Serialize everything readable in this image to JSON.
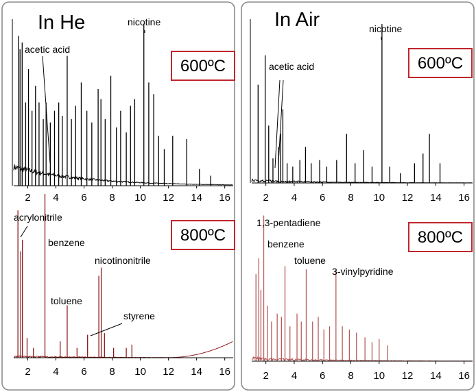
{
  "chart_data": [
    {
      "type": "line",
      "panel_title": "In He",
      "temperature": "600ºC",
      "color": "#000000",
      "xlim": [
        1,
        16.6
      ],
      "ticks": [
        2,
        4,
        6,
        8,
        10,
        12,
        14,
        16
      ],
      "peaks": [
        {
          "x": 1.35,
          "y": 0.9
        },
        {
          "x": 1.45,
          "y": 0.82
        },
        {
          "x": 1.6,
          "y": 0.86
        },
        {
          "x": 1.85,
          "y": 0.5
        },
        {
          "x": 2.05,
          "y": 0.7
        },
        {
          "x": 2.3,
          "y": 0.45
        },
        {
          "x": 2.55,
          "y": 0.6
        },
        {
          "x": 2.8,
          "y": 0.5
        },
        {
          "x": 3.1,
          "y": 0.4
        },
        {
          "x": 3.3,
          "y": 0.5
        },
        {
          "x": 3.6,
          "y": 0.38
        },
        {
          "x": 3.9,
          "y": 0.45
        },
        {
          "x": 4.2,
          "y": 0.5
        },
        {
          "x": 4.45,
          "y": 0.42
        },
        {
          "x": 4.8,
          "y": 0.78
        },
        {
          "x": 5.1,
          "y": 0.4
        },
        {
          "x": 5.4,
          "y": 0.48
        },
        {
          "x": 5.8,
          "y": 0.62
        },
        {
          "x": 6.2,
          "y": 0.45
        },
        {
          "x": 6.55,
          "y": 0.38
        },
        {
          "x": 7.0,
          "y": 0.58
        },
        {
          "x": 7.2,
          "y": 0.52
        },
        {
          "x": 7.5,
          "y": 0.4
        },
        {
          "x": 7.9,
          "y": 0.66
        },
        {
          "x": 8.3,
          "y": 0.35
        },
        {
          "x": 8.6,
          "y": 0.45
        },
        {
          "x": 9.0,
          "y": 0.32
        },
        {
          "x": 9.3,
          "y": 0.48
        },
        {
          "x": 9.6,
          "y": 0.52
        },
        {
          "x": 10.25,
          "y": 0.97
        },
        {
          "x": 10.6,
          "y": 0.62
        },
        {
          "x": 10.95,
          "y": 0.55
        },
        {
          "x": 11.3,
          "y": 0.3
        },
        {
          "x": 11.7,
          "y": 0.22
        },
        {
          "x": 12.3,
          "y": 0.3
        },
        {
          "x": 13.3,
          "y": 0.28
        },
        {
          "x": 14.2,
          "y": 0.1
        },
        {
          "x": 15.0,
          "y": 0.06
        }
      ],
      "annotations": [
        {
          "label": "acetic acid",
          "x": 3.7
        },
        {
          "label": "nicotine",
          "x": 10.25
        }
      ]
    },
    {
      "type": "line",
      "panel_title": "In Air",
      "temperature": "600ºC",
      "color": "#000000",
      "xlim": [
        1,
        16.6
      ],
      "ticks": [
        2,
        4,
        6,
        8,
        10,
        12,
        14,
        16
      ],
      "peaks": [
        {
          "x": 1.45,
          "y": 0.6
        },
        {
          "x": 1.95,
          "y": 0.78
        },
        {
          "x": 2.2,
          "y": 0.35
        },
        {
          "x": 2.5,
          "y": 0.15
        },
        {
          "x": 2.9,
          "y": 0.22
        },
        {
          "x": 3.05,
          "y": 0.3
        },
        {
          "x": 3.2,
          "y": 0.45
        },
        {
          "x": 3.5,
          "y": 0.12
        },
        {
          "x": 3.9,
          "y": 0.1
        },
        {
          "x": 4.4,
          "y": 0.14
        },
        {
          "x": 4.8,
          "y": 0.22
        },
        {
          "x": 5.2,
          "y": 0.12
        },
        {
          "x": 5.8,
          "y": 0.14
        },
        {
          "x": 6.3,
          "y": 0.1
        },
        {
          "x": 7.0,
          "y": 0.14
        },
        {
          "x": 7.7,
          "y": 0.3
        },
        {
          "x": 8.3,
          "y": 0.12
        },
        {
          "x": 8.9,
          "y": 0.2
        },
        {
          "x": 9.5,
          "y": 0.1
        },
        {
          "x": 10.2,
          "y": 0.97
        },
        {
          "x": 10.75,
          "y": 0.1
        },
        {
          "x": 11.5,
          "y": 0.06
        },
        {
          "x": 12.5,
          "y": 0.12
        },
        {
          "x": 13.1,
          "y": 0.18
        },
        {
          "x": 13.55,
          "y": 0.3
        },
        {
          "x": 14.3,
          "y": 0.12
        }
      ],
      "annotations": [
        {
          "label": "acetic acid",
          "x": 3.1
        },
        {
          "label": "nicotine",
          "x": 10.2
        }
      ]
    },
    {
      "type": "line",
      "panel_title": "",
      "temperature": "800ºC",
      "color": "#8b1a1a",
      "xlim": [
        1,
        16.6
      ],
      "ticks": [
        2,
        4,
        6,
        8,
        10,
        12,
        14,
        16
      ],
      "peaks": [
        {
          "x": 1.3,
          "y": 0.9
        },
        {
          "x": 1.5,
          "y": 0.65
        },
        {
          "x": 1.62,
          "y": 0.72
        },
        {
          "x": 1.95,
          "y": 0.12
        },
        {
          "x": 2.4,
          "y": 0.06
        },
        {
          "x": 3.22,
          "y": 1.0
        },
        {
          "x": 4.3,
          "y": 0.1
        },
        {
          "x": 4.8,
          "y": 0.32
        },
        {
          "x": 5.5,
          "y": 0.06
        },
        {
          "x": 6.25,
          "y": 0.14
        },
        {
          "x": 7.05,
          "y": 0.5
        },
        {
          "x": 7.22,
          "y": 0.55
        },
        {
          "x": 7.45,
          "y": 0.15
        },
        {
          "x": 8.1,
          "y": 0.06
        },
        {
          "x": 9.0,
          "y": 0.06
        },
        {
          "x": 9.4,
          "y": 0.08
        }
      ],
      "annotations": [
        {
          "label": "acrylonitrile",
          "x": 1.6
        },
        {
          "label": "benzene",
          "x": 3.22
        },
        {
          "label": "nicotinonitrile",
          "x": 7.22
        },
        {
          "label": "toluene",
          "x": 4.8
        },
        {
          "label": "styrene",
          "x": 6.25
        }
      ]
    },
    {
      "type": "line",
      "panel_title": "",
      "temperature": "800ºC",
      "color": "#b85a5a",
      "xlim": [
        1,
        16.6
      ],
      "ticks": [
        2,
        4,
        6,
        8,
        10,
        12,
        14,
        16
      ],
      "peaks": [
        {
          "x": 1.3,
          "y": 0.55
        },
        {
          "x": 1.5,
          "y": 0.65
        },
        {
          "x": 1.65,
          "y": 0.45
        },
        {
          "x": 1.85,
          "y": 0.92
        },
        {
          "x": 2.1,
          "y": 0.35
        },
        {
          "x": 2.4,
          "y": 0.25
        },
        {
          "x": 2.8,
          "y": 0.3
        },
        {
          "x": 3.1,
          "y": 0.28
        },
        {
          "x": 3.35,
          "y": 0.6
        },
        {
          "x": 3.7,
          "y": 0.22
        },
        {
          "x": 4.2,
          "y": 0.3
        },
        {
          "x": 4.5,
          "y": 0.25
        },
        {
          "x": 4.85,
          "y": 0.58
        },
        {
          "x": 5.3,
          "y": 0.25
        },
        {
          "x": 5.7,
          "y": 0.28
        },
        {
          "x": 6.1,
          "y": 0.2
        },
        {
          "x": 6.5,
          "y": 0.22
        },
        {
          "x": 6.95,
          "y": 0.58
        },
        {
          "x": 7.4,
          "y": 0.22
        },
        {
          "x": 7.9,
          "y": 0.2
        },
        {
          "x": 8.4,
          "y": 0.18
        },
        {
          "x": 9.0,
          "y": 0.15
        },
        {
          "x": 9.5,
          "y": 0.12
        },
        {
          "x": 10.0,
          "y": 0.14
        },
        {
          "x": 10.6,
          "y": 0.1
        }
      ],
      "annotations": [
        {
          "label": "1,3-pentadiene",
          "x": 1.85
        },
        {
          "label": "benzene",
          "x": 3.35
        },
        {
          "label": "toluene",
          "x": 4.85
        },
        {
          "label": "3-vinylpyridine",
          "x": 6.95
        }
      ]
    }
  ]
}
